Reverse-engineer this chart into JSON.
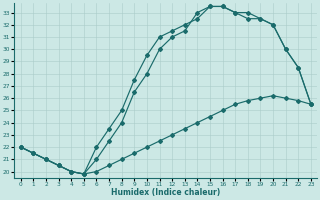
{
  "xlabel": "Humidex (Indice chaleur)",
  "background_color": "#cce8e5",
  "grid_color": "#aaccca",
  "line_color": "#1a6b6b",
  "xlim": [
    -0.5,
    23.5
  ],
  "ylim": [
    19.5,
    33.8
  ],
  "xticks": [
    0,
    1,
    2,
    3,
    4,
    5,
    6,
    7,
    8,
    9,
    10,
    11,
    12,
    13,
    14,
    15,
    16,
    17,
    18,
    19,
    20,
    21,
    22,
    23
  ],
  "yticks": [
    20,
    21,
    22,
    23,
    24,
    25,
    26,
    27,
    28,
    29,
    30,
    31,
    32,
    33
  ],
  "line1_x": [
    0,
    1,
    2,
    3,
    4,
    5,
    6,
    7,
    8,
    9,
    10,
    11,
    12,
    13,
    14,
    15,
    16,
    17,
    18,
    19,
    20,
    21,
    22,
    23
  ],
  "line1_y": [
    22.0,
    21.5,
    21.0,
    20.5,
    20.0,
    19.8,
    20.0,
    20.5,
    21.0,
    21.5,
    22.0,
    22.5,
    23.0,
    23.5,
    24.0,
    24.5,
    25.0,
    25.5,
    25.8,
    26.0,
    26.2,
    26.0,
    25.8,
    25.5
  ],
  "line2_x": [
    0,
    1,
    2,
    3,
    4,
    5,
    6,
    7,
    8,
    9,
    10,
    11,
    12,
    13,
    14,
    15,
    16,
    17,
    18,
    19,
    20,
    21,
    22,
    23
  ],
  "line2_y": [
    22.0,
    21.5,
    21.0,
    20.5,
    20.0,
    19.8,
    22.0,
    23.5,
    25.0,
    27.5,
    29.5,
    31.0,
    31.5,
    32.0,
    32.5,
    33.5,
    33.5,
    33.0,
    33.0,
    32.5,
    32.0,
    30.0,
    28.5,
    25.5
  ],
  "line3_x": [
    0,
    1,
    2,
    3,
    4,
    5,
    6,
    7,
    8,
    9,
    10,
    11,
    12,
    13,
    14,
    15,
    16,
    17,
    18,
    19,
    20,
    21,
    22,
    23
  ],
  "line3_y": [
    22.0,
    21.5,
    21.0,
    20.5,
    20.0,
    19.8,
    21.0,
    22.5,
    24.0,
    26.5,
    28.0,
    30.0,
    31.0,
    31.5,
    33.0,
    33.5,
    33.5,
    33.0,
    32.5,
    32.5,
    32.0,
    30.0,
    28.5,
    25.5
  ]
}
